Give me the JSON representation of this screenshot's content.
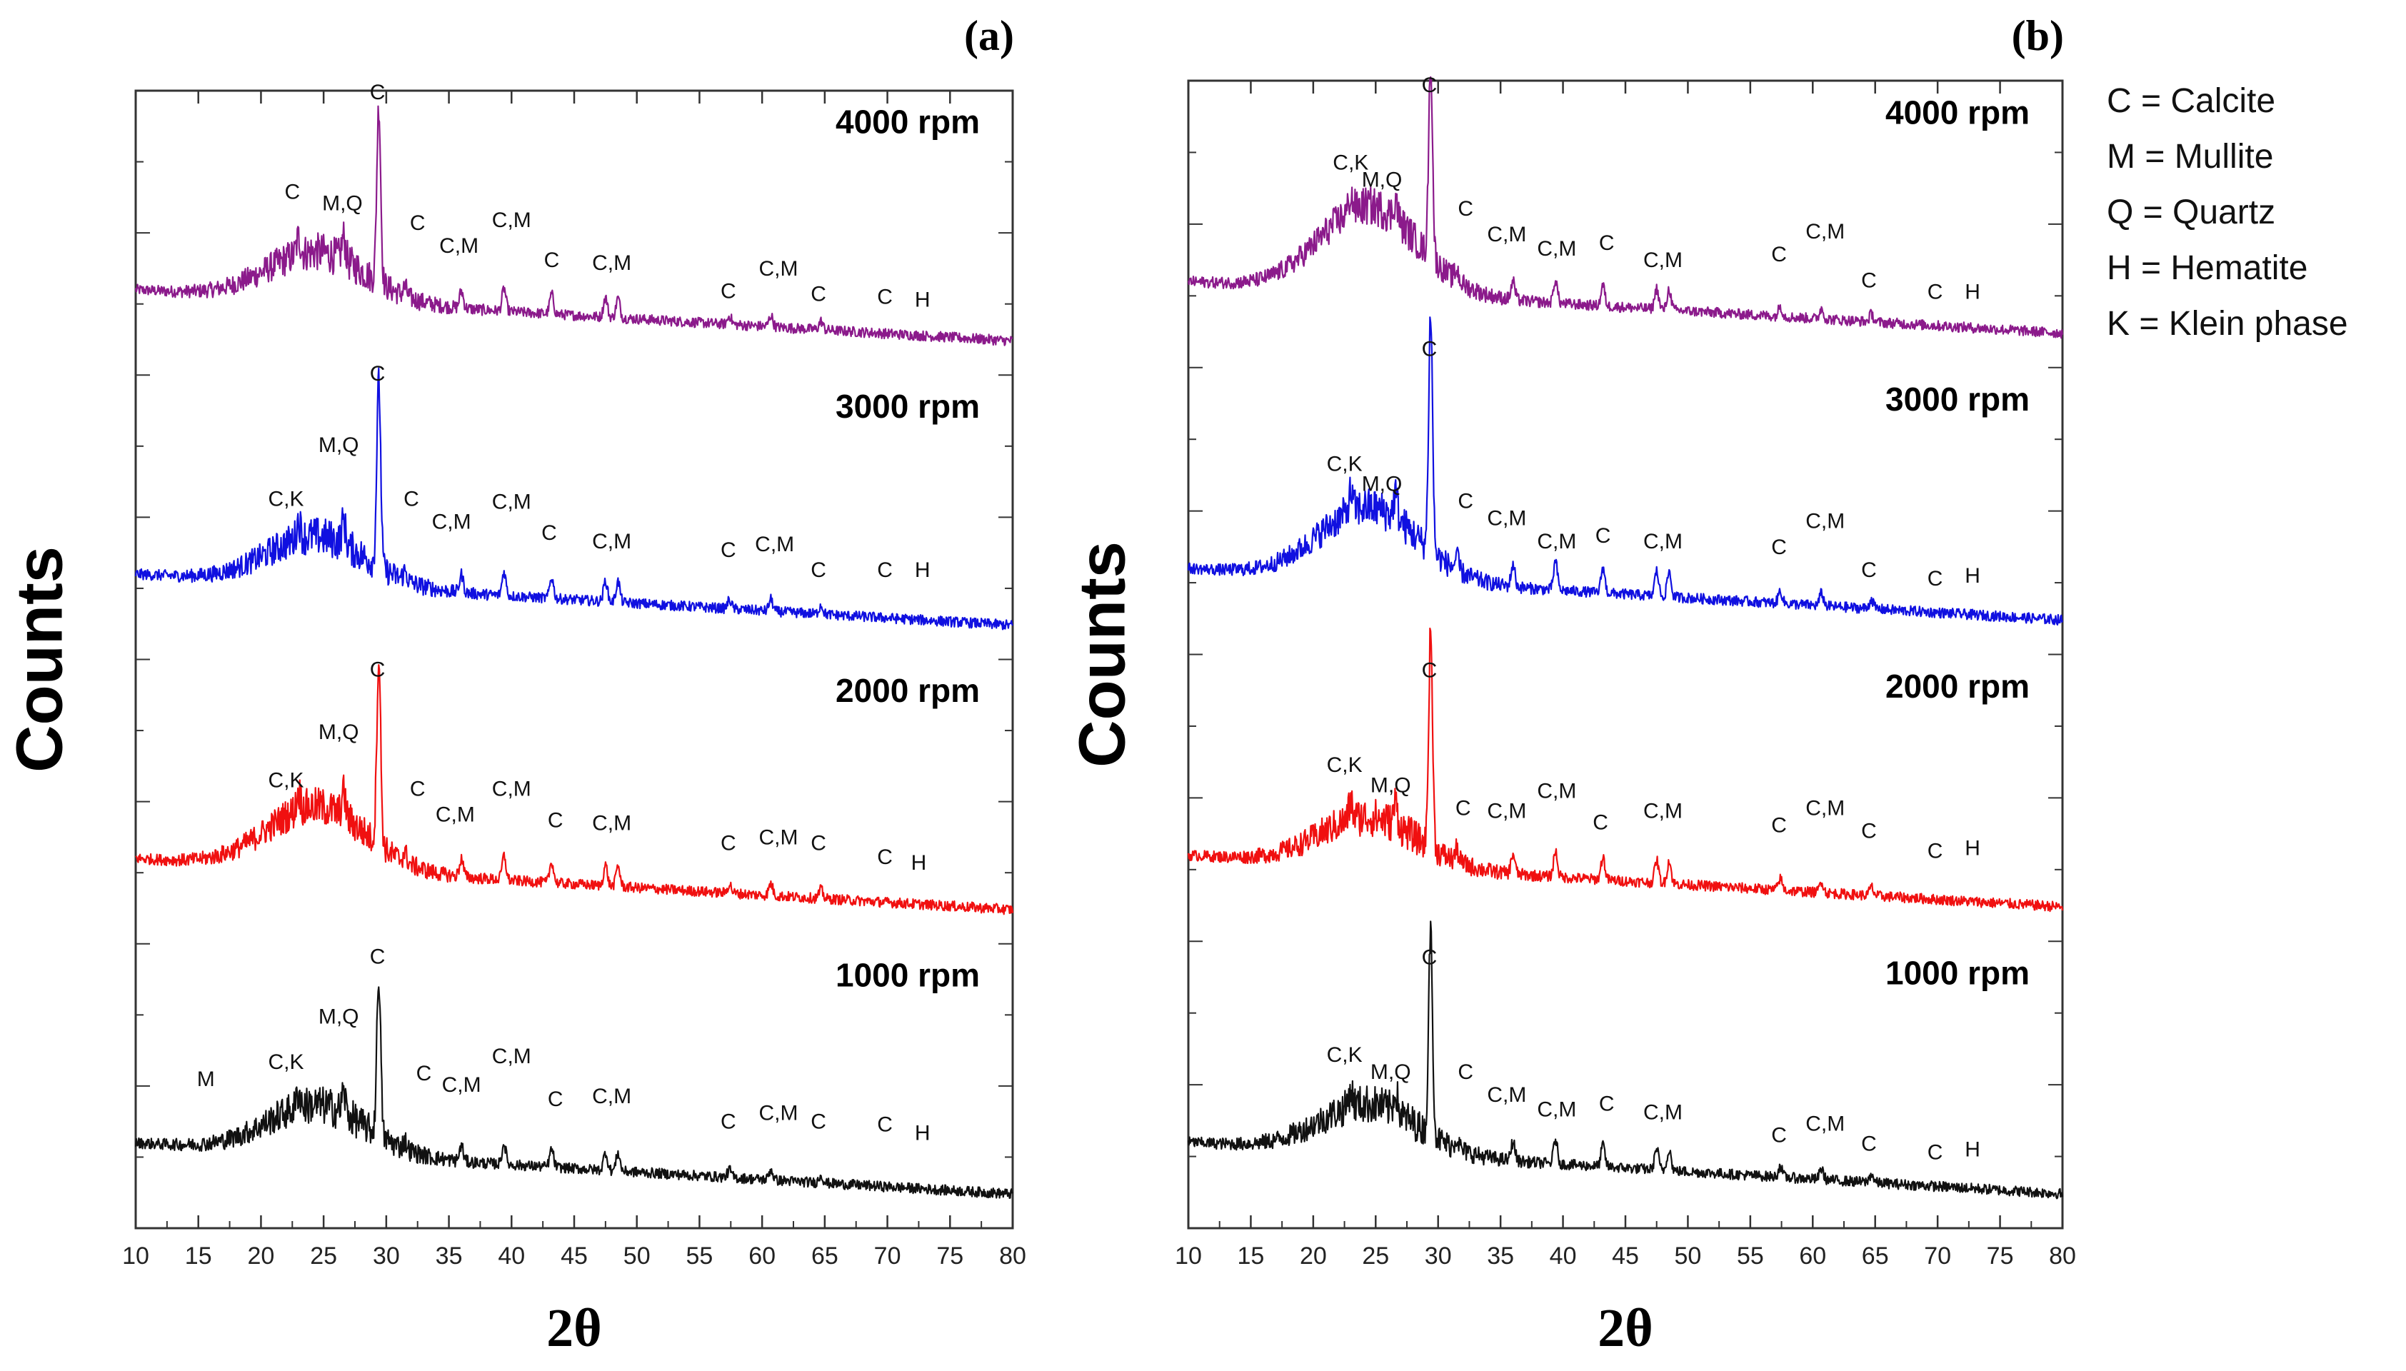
{
  "legend": [
    {
      "code": "C",
      "text": "C = Calcite"
    },
    {
      "code": "M",
      "text": "M = Mullite"
    },
    {
      "code": "Q",
      "text": "Q = Quartz"
    },
    {
      "code": "H",
      "text": "H = Hematite"
    },
    {
      "code": "K",
      "text": "K = Klein phase"
    }
  ],
  "colors": {
    "4000 rpm": "#8B1A8B",
    "3000 rpm": "#1010E0",
    "2000 rpm": "#F01010",
    "1000 rpm": "#111111",
    "axis": "#333333",
    "text": "#000000"
  },
  "chart_data": [
    {
      "type": "line",
      "panel_label": "(a)",
      "title": "",
      "xlabel": "2θ",
      "ylabel": "Counts",
      "xlim": [
        10,
        80
      ],
      "ylim": [
        0,
        4
      ],
      "xticks": [
        10,
        15,
        20,
        25,
        30,
        35,
        40,
        45,
        50,
        55,
        60,
        65,
        70,
        75,
        80
      ],
      "yticks_labeled": false,
      "grid": false,
      "series": [
        {
          "name": "4000 rpm",
          "baseline": 3.0,
          "hump": 0.17,
          "slope": 0.18,
          "peak_scale": 1.0,
          "annotations": [
            {
              "label": "C",
              "x": 22.5,
              "y": 3.62
            },
            {
              "label": "M,Q",
              "x": 26.5,
              "y": 3.58
            },
            {
              "label": "C",
              "x": 29.3,
              "y": 3.97
            },
            {
              "label": "C",
              "x": 32.5,
              "y": 3.51
            },
            {
              "label": "C,M",
              "x": 35.8,
              "y": 3.43
            },
            {
              "label": "C,M",
              "x": 40.0,
              "y": 3.52
            },
            {
              "label": "C",
              "x": 43.2,
              "y": 3.38
            },
            {
              "label": "C,M",
              "x": 48.0,
              "y": 3.37
            },
            {
              "label": "C",
              "x": 57.3,
              "y": 3.27
            },
            {
              "label": "C,M",
              "x": 61.3,
              "y": 3.35
            },
            {
              "label": "C",
              "x": 64.5,
              "y": 3.26
            },
            {
              "label": "C",
              "x": 69.8,
              "y": 3.25
            },
            {
              "label": "H",
              "x": 72.8,
              "y": 3.24
            }
          ]
        },
        {
          "name": "3000 rpm",
          "baseline": 2.0,
          "hump": 0.17,
          "slope": 0.18,
          "peak_scale": 1.05,
          "annotations": [
            {
              "label": "C,K",
              "x": 22.0,
              "y": 2.54
            },
            {
              "label": "M,Q",
              "x": 26.2,
              "y": 2.73
            },
            {
              "label": "C",
              "x": 29.3,
              "y": 2.98
            },
            {
              "label": "C",
              "x": 32.0,
              "y": 2.54
            },
            {
              "label": "C,M",
              "x": 35.2,
              "y": 2.46
            },
            {
              "label": "C,M",
              "x": 40.0,
              "y": 2.53
            },
            {
              "label": "C",
              "x": 43.0,
              "y": 2.42
            },
            {
              "label": "C,M",
              "x": 48.0,
              "y": 2.39
            },
            {
              "label": "C",
              "x": 57.3,
              "y": 2.36
            },
            {
              "label": "C,M",
              "x": 61.0,
              "y": 2.38
            },
            {
              "label": "C",
              "x": 64.5,
              "y": 2.29
            },
            {
              "label": "C",
              "x": 69.8,
              "y": 2.29
            },
            {
              "label": "H",
              "x": 72.8,
              "y": 2.29
            }
          ]
        },
        {
          "name": "2000 rpm",
          "baseline": 1.0,
          "hump": 0.22,
          "slope": 0.18,
          "peak_scale": 1.05,
          "annotations": [
            {
              "label": "C,K",
              "x": 22.0,
              "y": 1.55
            },
            {
              "label": "M,Q",
              "x": 26.2,
              "y": 1.72
            },
            {
              "label": "C",
              "x": 29.3,
              "y": 1.94
            },
            {
              "label": "C",
              "x": 32.5,
              "y": 1.52
            },
            {
              "label": "C,M",
              "x": 35.5,
              "y": 1.43
            },
            {
              "label": "C,M",
              "x": 40.0,
              "y": 1.52
            },
            {
              "label": "C",
              "x": 43.5,
              "y": 1.41
            },
            {
              "label": "C,M",
              "x": 48.0,
              "y": 1.4
            },
            {
              "label": "C",
              "x": 57.3,
              "y": 1.33
            },
            {
              "label": "C,M",
              "x": 61.3,
              "y": 1.35
            },
            {
              "label": "C",
              "x": 64.5,
              "y": 1.33
            },
            {
              "label": "C",
              "x": 69.8,
              "y": 1.28
            },
            {
              "label": "H",
              "x": 72.5,
              "y": 1.26
            }
          ]
        },
        {
          "name": "1000 rpm",
          "baseline": 0.0,
          "hump": 0.17,
          "slope": 0.18,
          "peak_scale": 0.9,
          "annotations": [
            {
              "label": "M",
              "x": 15.6,
              "y": 0.5
            },
            {
              "label": "C,K",
              "x": 22.0,
              "y": 0.56
            },
            {
              "label": "M,Q",
              "x": 26.2,
              "y": 0.72
            },
            {
              "label": "C",
              "x": 29.3,
              "y": 0.93
            },
            {
              "label": "C",
              "x": 33.0,
              "y": 0.52
            },
            {
              "label": "C,M",
              "x": 36.0,
              "y": 0.48
            },
            {
              "label": "C,M",
              "x": 40.0,
              "y": 0.58
            },
            {
              "label": "C",
              "x": 43.5,
              "y": 0.43
            },
            {
              "label": "C,M",
              "x": 48.0,
              "y": 0.44
            },
            {
              "label": "C",
              "x": 57.3,
              "y": 0.35
            },
            {
              "label": "C,M",
              "x": 61.3,
              "y": 0.38
            },
            {
              "label": "C",
              "x": 64.5,
              "y": 0.35
            },
            {
              "label": "C",
              "x": 69.8,
              "y": 0.34
            },
            {
              "label": "H",
              "x": 72.8,
              "y": 0.31
            }
          ]
        }
      ]
    },
    {
      "type": "line",
      "panel_label": "(b)",
      "title": "",
      "xlabel": "2θ",
      "ylabel": "Counts",
      "xlim": [
        10,
        80
      ],
      "ylim": [
        0,
        4
      ],
      "xticks": [
        10,
        15,
        20,
        25,
        30,
        35,
        40,
        45,
        50,
        55,
        60,
        65,
        70,
        75,
        80
      ],
      "yticks_labeled": false,
      "grid": false,
      "series": [
        {
          "name": "4000 rpm",
          "baseline": 3.0,
          "hump": 0.3,
          "slope": 0.18,
          "peak_scale": 0.9,
          "annotations": [
            {
              "label": "C,K",
              "x": 23.0,
              "y": 3.69
            },
            {
              "label": "M,Q",
              "x": 25.5,
              "y": 3.63
            },
            {
              "label": "C",
              "x": 29.3,
              "y": 3.96
            },
            {
              "label": "C",
              "x": 32.2,
              "y": 3.53
            },
            {
              "label": "C,M",
              "x": 35.5,
              "y": 3.44
            },
            {
              "label": "C,M",
              "x": 39.5,
              "y": 3.39
            },
            {
              "label": "C",
              "x": 43.5,
              "y": 3.41
            },
            {
              "label": "C,M",
              "x": 48.0,
              "y": 3.35
            },
            {
              "label": "C",
              "x": 57.3,
              "y": 3.37
            },
            {
              "label": "C,M",
              "x": 61.0,
              "y": 3.45
            },
            {
              "label": "C",
              "x": 64.5,
              "y": 3.28
            },
            {
              "label": "C",
              "x": 69.8,
              "y": 3.24
            },
            {
              "label": "H",
              "x": 72.8,
              "y": 3.24
            }
          ]
        },
        {
          "name": "3000 rpm",
          "baseline": 2.0,
          "hump": 0.25,
          "slope": 0.18,
          "peak_scale": 1.1,
          "annotations": [
            {
              "label": "C,K",
              "x": 22.5,
              "y": 2.64
            },
            {
              "label": "M,Q",
              "x": 25.5,
              "y": 2.57
            },
            {
              "label": "C",
              "x": 29.3,
              "y": 3.04
            },
            {
              "label": "C",
              "x": 32.2,
              "y": 2.51
            },
            {
              "label": "C,M",
              "x": 35.5,
              "y": 2.45
            },
            {
              "label": "C,M",
              "x": 39.5,
              "y": 2.37
            },
            {
              "label": "C",
              "x": 43.2,
              "y": 2.39
            },
            {
              "label": "C,M",
              "x": 48.0,
              "y": 2.37
            },
            {
              "label": "C",
              "x": 57.3,
              "y": 2.35
            },
            {
              "label": "C,M",
              "x": 61.0,
              "y": 2.44
            },
            {
              "label": "C",
              "x": 64.5,
              "y": 2.27
            },
            {
              "label": "C",
              "x": 69.8,
              "y": 2.24
            },
            {
              "label": "H",
              "x": 72.8,
              "y": 2.25
            }
          ]
        },
        {
          "name": "2000 rpm",
          "baseline": 1.0,
          "hump": 0.17,
          "slope": 0.18,
          "peak_scale": 1.0,
          "annotations": [
            {
              "label": "C,K",
              "x": 22.5,
              "y": 1.59
            },
            {
              "label": "M,Q",
              "x": 26.2,
              "y": 1.52
            },
            {
              "label": "C",
              "x": 29.3,
              "y": 1.92
            },
            {
              "label": "C",
              "x": 32.0,
              "y": 1.44
            },
            {
              "label": "C,M",
              "x": 35.5,
              "y": 1.43
            },
            {
              "label": "C,M",
              "x": 39.5,
              "y": 1.5
            },
            {
              "label": "C",
              "x": 43.0,
              "y": 1.39
            },
            {
              "label": "C,M",
              "x": 48.0,
              "y": 1.43
            },
            {
              "label": "C",
              "x": 57.3,
              "y": 1.38
            },
            {
              "label": "C,M",
              "x": 61.0,
              "y": 1.44
            },
            {
              "label": "C",
              "x": 64.5,
              "y": 1.36
            },
            {
              "label": "C",
              "x": 69.8,
              "y": 1.29
            },
            {
              "label": "H",
              "x": 72.8,
              "y": 1.3
            }
          ]
        },
        {
          "name": "1000 rpm",
          "baseline": 0.0,
          "hump": 0.17,
          "slope": 0.18,
          "peak_scale": 0.95,
          "annotations": [
            {
              "label": "C,K",
              "x": 22.5,
              "y": 0.58
            },
            {
              "label": "M,Q",
              "x": 26.2,
              "y": 0.52
            },
            {
              "label": "C",
              "x": 29.3,
              "y": 0.92
            },
            {
              "label": "C",
              "x": 32.2,
              "y": 0.52
            },
            {
              "label": "C,M",
              "x": 35.5,
              "y": 0.44
            },
            {
              "label": "C,M",
              "x": 39.5,
              "y": 0.39
            },
            {
              "label": "C",
              "x": 43.5,
              "y": 0.41
            },
            {
              "label": "C,M",
              "x": 48.0,
              "y": 0.38
            },
            {
              "label": "C",
              "x": 57.3,
              "y": 0.3
            },
            {
              "label": "C,M",
              "x": 61.0,
              "y": 0.34
            },
            {
              "label": "C",
              "x": 64.5,
              "y": 0.27
            },
            {
              "label": "C",
              "x": 69.8,
              "y": 0.24
            },
            {
              "label": "H",
              "x": 72.8,
              "y": 0.25
            }
          ]
        }
      ],
      "peaks": [
        {
          "x": 23.0,
          "h": 0.06
        },
        {
          "x": 26.6,
          "h": 0.08
        },
        {
          "x": 29.4,
          "h": 0.75
        },
        {
          "x": 31.5,
          "h": 0.04
        },
        {
          "x": 36.0,
          "h": 0.07
        },
        {
          "x": 39.4,
          "h": 0.09
        },
        {
          "x": 43.2,
          "h": 0.08
        },
        {
          "x": 47.5,
          "h": 0.08
        },
        {
          "x": 48.5,
          "h": 0.08
        },
        {
          "x": 57.4,
          "h": 0.04
        },
        {
          "x": 60.7,
          "h": 0.04
        },
        {
          "x": 64.7,
          "h": 0.03
        }
      ]
    }
  ]
}
